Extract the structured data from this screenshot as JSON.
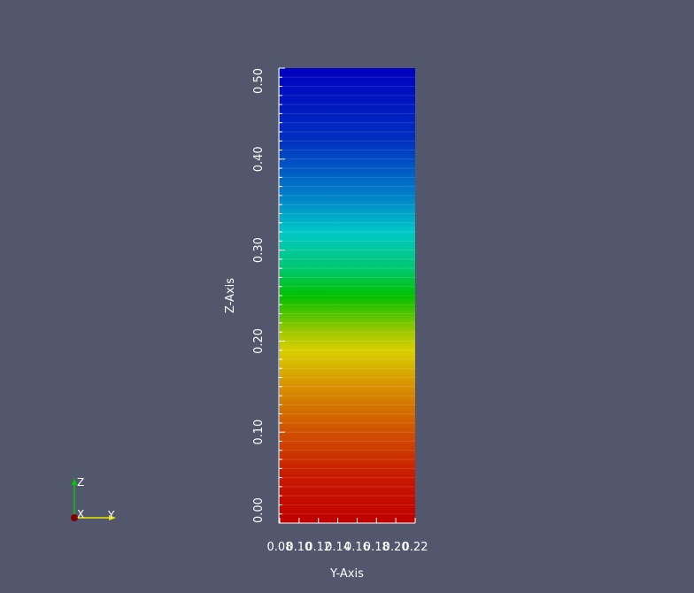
{
  "chart_data": {
    "type": "heatmap",
    "xlabel": "Y-Axis",
    "ylabel": "Z-Axis",
    "xlim": [
      0.08,
      0.22
    ],
    "ylim": [
      0.0,
      0.5
    ],
    "x_ticks": [
      "0.08",
      "0.10",
      "0.12",
      "0.14",
      "0.16",
      "0.18",
      "0.20",
      "0.22"
    ],
    "y_ticks": [
      "0.00",
      "0.10",
      "0.20",
      "0.30",
      "0.40",
      "0.50"
    ],
    "x_tick_values": [
      0.08,
      0.1,
      0.12,
      0.14,
      0.16,
      0.18,
      0.2,
      0.22
    ],
    "y_tick_values": [
      0.0,
      0.1,
      0.2,
      0.3,
      0.4,
      0.5
    ],
    "colormap": "rainbow (blue at top to red at bottom)",
    "color_stops": [
      {
        "z": 0.5,
        "color": "#0000c0"
      },
      {
        "z": 0.42,
        "color": "#0030c0"
      },
      {
        "z": 0.36,
        "color": "#0080c8"
      },
      {
        "z": 0.32,
        "color": "#00c8c8"
      },
      {
        "z": 0.28,
        "color": "#00c870"
      },
      {
        "z": 0.25,
        "color": "#00c000"
      },
      {
        "z": 0.21,
        "color": "#a0c800"
      },
      {
        "z": 0.19,
        "color": "#d8d000"
      },
      {
        "z": 0.15,
        "color": "#d89000"
      },
      {
        "z": 0.1,
        "color": "#d05000"
      },
      {
        "z": 0.05,
        "color": "#c81800"
      },
      {
        "z": 0.0,
        "color": "#c00000"
      }
    ]
  },
  "orientation_axes": {
    "labels": [
      "Z",
      "X",
      "Y"
    ],
    "colors": {
      "x_axis": "#e8e800",
      "z_axis": "#00c800",
      "origin": "#800000"
    }
  },
  "colors": {
    "background": "#52576e",
    "text": "#ffffff"
  }
}
